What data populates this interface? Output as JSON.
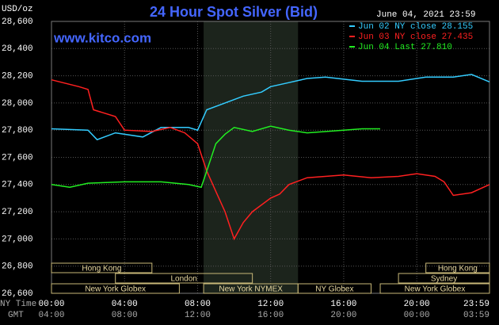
{
  "chart_data": {
    "type": "line",
    "title": "24 Hour Spot Silver (Bid)",
    "y_label": "USD/oz",
    "website": "www.kitco.com",
    "timestamp": "June 04, 2021 23:59",
    "x_row_label": "NY Time",
    "x2_row_label": "GMT",
    "xlim": [
      0,
      23.983
    ],
    "xticks": [
      {
        "value": 0,
        "label": "00:00"
      },
      {
        "value": 4,
        "label": "04:00"
      },
      {
        "value": 8,
        "label": "08:00"
      },
      {
        "value": 12,
        "label": "12:00"
      },
      {
        "value": 16,
        "label": "16:00"
      },
      {
        "value": 20,
        "label": "20:00"
      },
      {
        "value": 23.983,
        "label": "23:59"
      }
    ],
    "x2tick_labels": [
      "04:00",
      "08:00",
      "12:00",
      "16:00",
      "20:00",
      "00:00",
      "03:59"
    ],
    "ylim": [
      26600,
      28600
    ],
    "yticks": [
      {
        "value": 26600,
        "label": "26,600"
      },
      {
        "value": 26800,
        "label": "26,800"
      },
      {
        "value": 27000,
        "label": "27,000"
      },
      {
        "value": 27200,
        "label": "27,200"
      },
      {
        "value": 27400,
        "label": "27,400"
      },
      {
        "value": 27600,
        "label": "27,600"
      },
      {
        "value": 27800,
        "label": "27,800"
      },
      {
        "value": 28000,
        "label": "28,000"
      },
      {
        "value": 28200,
        "label": "28,200"
      },
      {
        "value": 28400,
        "label": "28,400"
      },
      {
        "value": 28600,
        "label": "28,600"
      }
    ],
    "grid": true,
    "highlight": [
      8.33,
      13.5
    ],
    "series": [
      {
        "name": "Jun 02 NY close 28.155",
        "color": "#33ccff",
        "x": [
          0,
          2,
          2.5,
          3.5,
          5,
          6,
          7.5,
          8,
          8.5,
          9.5,
          10.5,
          11.5,
          12,
          13,
          14,
          15,
          17,
          19,
          20.5,
          22,
          23,
          23.983
        ],
        "values": [
          27810,
          27800,
          27730,
          27780,
          27750,
          27820,
          27820,
          27800,
          27950,
          28000,
          28050,
          28080,
          28120,
          28150,
          28180,
          28190,
          28160,
          28160,
          28190,
          28190,
          28210,
          28155
        ]
      },
      {
        "name": "Jun 03 NY close 27.435",
        "color": "#ff2020",
        "x": [
          0,
          1.5,
          2,
          2.3,
          3.5,
          4,
          5.5,
          6.5,
          7.3,
          8,
          8.5,
          9,
          9.5,
          10,
          10.5,
          11,
          12,
          12.5,
          13,
          14,
          16,
          17.5,
          19,
          20,
          21,
          21.5,
          22,
          23,
          23.983
        ],
        "values": [
          28170,
          28120,
          28100,
          27950,
          27900,
          27800,
          27790,
          27820,
          27780,
          27700,
          27500,
          27350,
          27200,
          27000,
          27120,
          27200,
          27300,
          27330,
          27400,
          27450,
          27470,
          27450,
          27460,
          27480,
          27460,
          27420,
          27320,
          27340,
          27400
        ]
      },
      {
        "name": "Jun 04 Last 27.810",
        "color": "#22ee22",
        "x": [
          0,
          1,
          2,
          4,
          6,
          7.5,
          8.2,
          8.5,
          9,
          9.5,
          10,
          11,
          12,
          13,
          14,
          16,
          17,
          18
        ],
        "values": [
          27400,
          27380,
          27410,
          27420,
          27420,
          27400,
          27380,
          27500,
          27700,
          27770,
          27820,
          27790,
          27830,
          27800,
          27780,
          27800,
          27810,
          27810
        ]
      }
    ],
    "sessions": [
      {
        "name": "Hong Kong",
        "start": 0,
        "end": 5.5,
        "row": 1
      },
      {
        "name": "Hong Kong",
        "start": 20.5,
        "end": 23.983,
        "row": 1
      },
      {
        "name": "London",
        "start": 3.5,
        "end": 11,
        "row": 2
      },
      {
        "name": "Sydney",
        "start": 19,
        "end": 23.983,
        "row": 2
      },
      {
        "name": "New York Globex",
        "start": 0,
        "end": 7,
        "row": 3
      },
      {
        "name": "New York NYMEX",
        "start": 8.33,
        "end": 13.5,
        "row": 3
      },
      {
        "name": "NY Globex",
        "start": 13.5,
        "end": 17.5,
        "row": 3
      },
      {
        "name": "New York Globex",
        "start": 18,
        "end": 23.983,
        "row": 3
      }
    ]
  }
}
